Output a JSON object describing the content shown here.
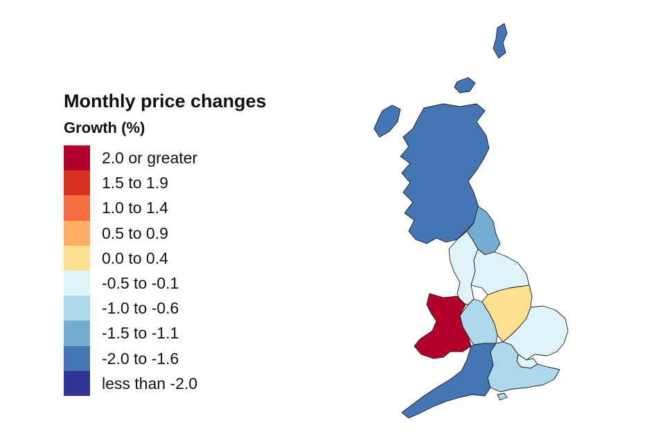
{
  "legend": {
    "title": "Monthly price changes",
    "subtitle": "Growth (%)",
    "items": [
      {
        "label": "2.0 or greater",
        "color": "#b2002b"
      },
      {
        "label": "1.5 to 1.9",
        "color": "#d7301f"
      },
      {
        "label": "1.0 to 1.4",
        "color": "#f46d43"
      },
      {
        "label": "0.5 to 0.9",
        "color": "#fdae61"
      },
      {
        "label": "0.0 to 0.4",
        "color": "#fee090"
      },
      {
        "label": "-0.5 to -0.1",
        "color": "#e0f3f8"
      },
      {
        "label": "-1.0 to -0.6",
        "color": "#abd9e9"
      },
      {
        "label": "-1.5 to -1.1",
        "color": "#74add1"
      },
      {
        "label": "-2.0 to -1.6",
        "color": "#4575b4"
      },
      {
        "label": "less than -2.0",
        "color": "#313695"
      }
    ]
  },
  "regions": {
    "scotland": {
      "bin": "-2.0 to -1.6",
      "color": "#4575b4"
    },
    "north_east": {
      "bin": "-1.5 to -1.1",
      "color": "#74add1"
    },
    "north_west": {
      "bin": "-0.5 to -0.1",
      "color": "#e0f3f8"
    },
    "yorkshire": {
      "bin": "-0.5 to -0.1",
      "color": "#e0f3f8"
    },
    "east_midlands": {
      "bin": "0.0 to 0.4",
      "color": "#fee090"
    },
    "west_midlands": {
      "bin": "-1.0 to -0.6",
      "color": "#abd9e9"
    },
    "east": {
      "bin": "-0.5 to -0.1",
      "color": "#e0f3f8"
    },
    "london": {
      "bin": "-0.5 to -0.1",
      "color": "#e0f3f8"
    },
    "south_east": {
      "bin": "-1.0 to -0.6",
      "color": "#abd9e9"
    },
    "south_west": {
      "bin": "-2.0 to -1.6",
      "color": "#4575b4"
    },
    "wales": {
      "bin": "2.0 or greater",
      "color": "#b2002b"
    }
  }
}
